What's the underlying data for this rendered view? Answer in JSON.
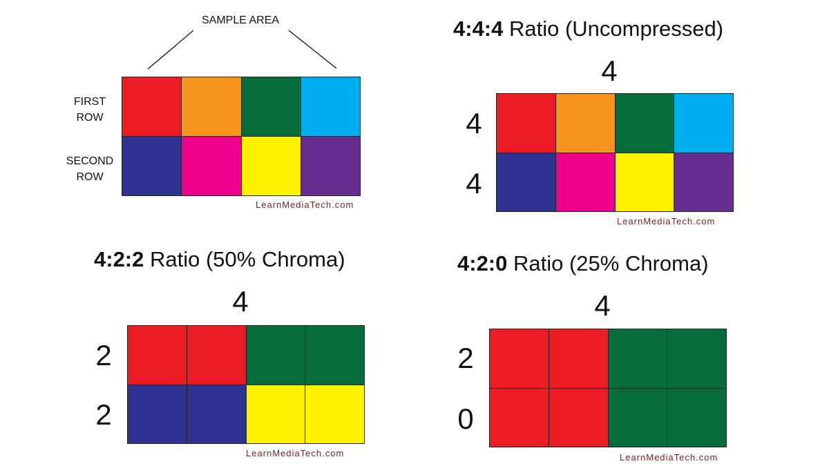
{
  "colors": {
    "red": "#ED1C24",
    "orange": "#F7941D",
    "green": "#066C3C",
    "cyan": "#00AEEF",
    "blue": "#2E3192",
    "magenta": "#EC008C",
    "yellow": "#FFF200",
    "purple": "#662D91",
    "credit": "#7A1F1F"
  },
  "sample_panel": {
    "callout": "SAMPLE AREA",
    "first_row_line1": "FIRST",
    "first_row_line2": "ROW",
    "second_row_line1": "SECOND",
    "second_row_line2": "ROW",
    "credit": "LearnMediaTech.com",
    "cells": [
      "red",
      "orange",
      "green",
      "cyan",
      "blue",
      "magenta",
      "yellow",
      "purple"
    ]
  },
  "panel_444": {
    "ratio": "4:4:4",
    "title_rest": " Ratio (Uncompressed)",
    "top_number": "4",
    "row1_number": "4",
    "row2_number": "4",
    "credit": "LearnMediaTech.com",
    "cells": [
      "red",
      "orange",
      "green",
      "cyan",
      "blue",
      "magenta",
      "yellow",
      "purple"
    ]
  },
  "panel_422": {
    "ratio": "4:2:2",
    "title_rest": " Ratio (50% Chroma)",
    "top_number": "4",
    "row1_number": "2",
    "row2_number": "2",
    "credit": "LearnMediaTech.com",
    "cells": [
      "red",
      "red",
      "green",
      "green",
      "blue",
      "blue",
      "yellow",
      "yellow"
    ]
  },
  "panel_420": {
    "ratio": "4:2:0",
    "title_rest": " Ratio (25% Chroma)",
    "top_number": "4",
    "row1_number": "2",
    "row2_number": "0",
    "credit": "LearnMediaTech.com",
    "cells": [
      "red",
      "red",
      "green",
      "green",
      "red",
      "red",
      "green",
      "green"
    ]
  }
}
